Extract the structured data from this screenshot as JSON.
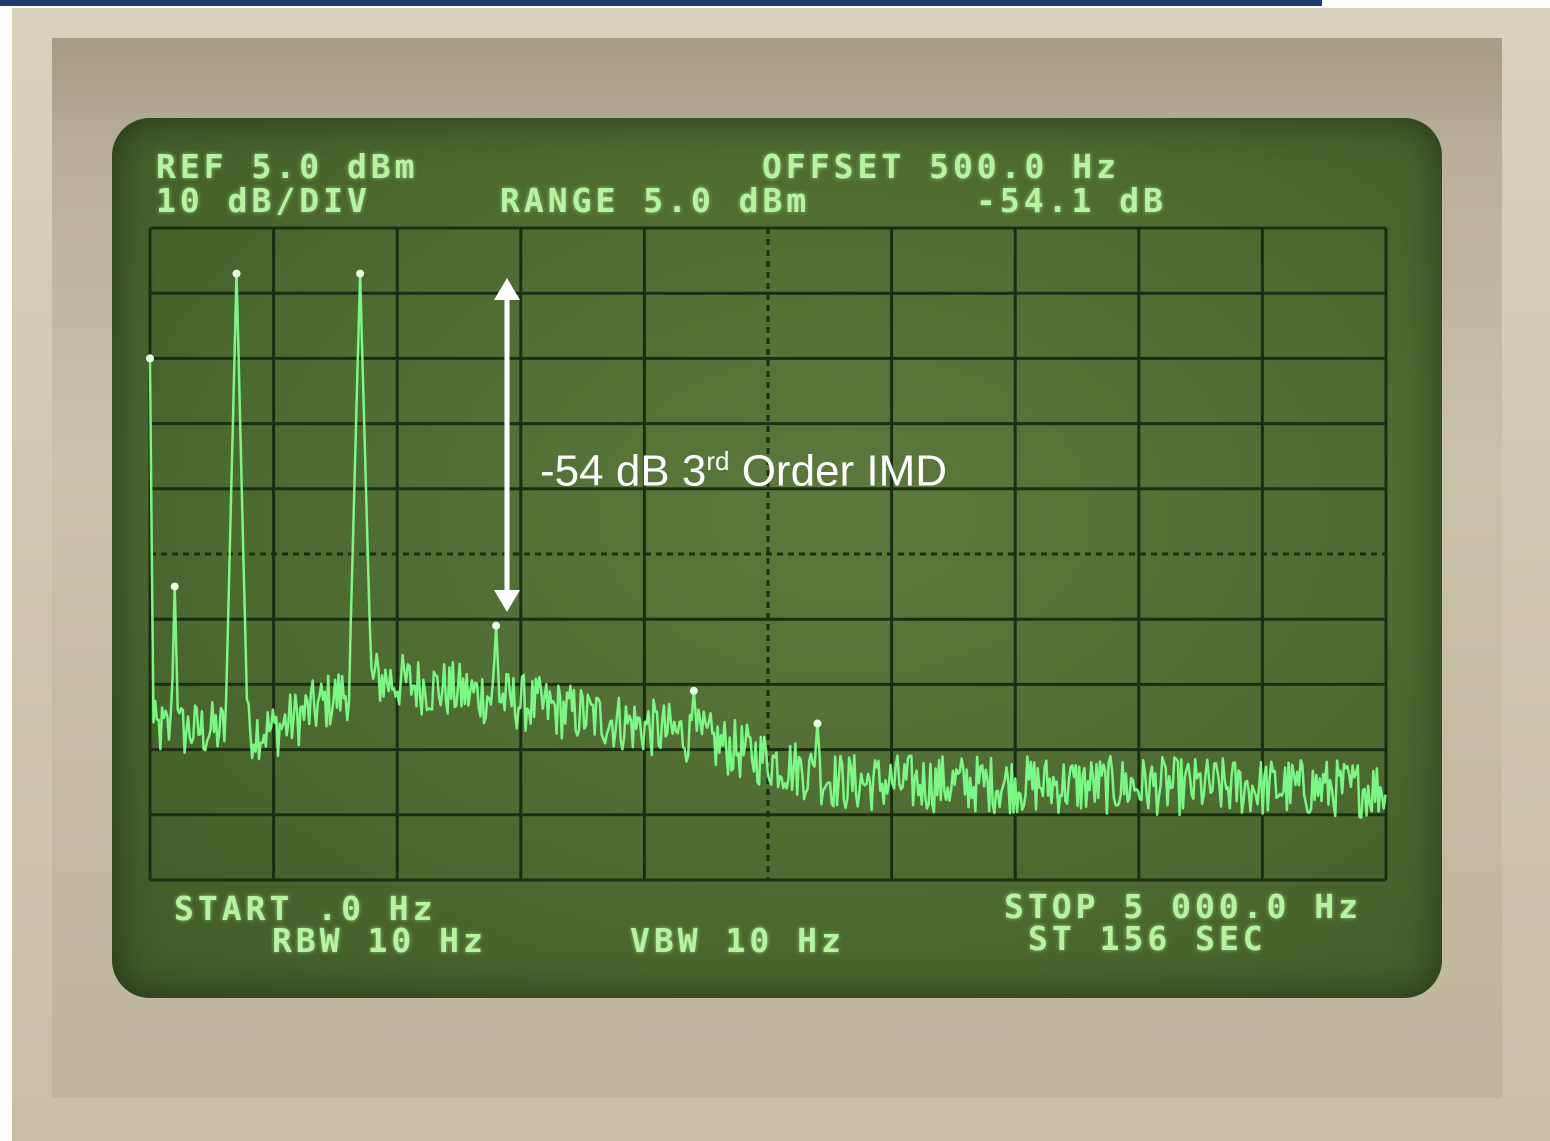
{
  "chart_data": {
    "type": "line",
    "title": "",
    "header": {
      "ref": "REF 5.0 dBm",
      "scale": "10 dB/DIV",
      "range": "RANGE 5.0 dBm",
      "offset": "OFFSET 500.0 Hz",
      "marker_delta": "-54.1 dB"
    },
    "footer": {
      "start": "START .0 Hz",
      "rbw": "RBW 10 Hz",
      "vbw": "VBW 10 Hz",
      "stop": "STOP 5 000.0 Hz",
      "sweep_time": "ST 156 SEC"
    },
    "annotation": {
      "prefix": "-54 dB 3",
      "superscript": "rd",
      "suffix": " Order IMD"
    },
    "xlabel": "",
    "ylabel": "",
    "xlim": [
      0,
      5000
    ],
    "ylim": [
      -95,
      5
    ],
    "grid": true,
    "x_divisions": 10,
    "y_divisions": 10,
    "trace_color": "#7dff8a",
    "peaks": [
      {
        "x": 0,
        "y": -15
      },
      {
        "x": 100,
        "y": -50
      },
      {
        "x": 350,
        "y": -2
      },
      {
        "x": 850,
        "y": -2
      },
      {
        "x": 1400,
        "y": -56
      },
      {
        "x": 2200,
        "y": -66
      },
      {
        "x": 2700,
        "y": -71
      }
    ],
    "noise_floor": [
      {
        "x": 0,
        "y": -72
      },
      {
        "x": 500,
        "y": -72
      },
      {
        "x": 900,
        "y": -64
      },
      {
        "x": 1400,
        "y": -67
      },
      {
        "x": 2200,
        "y": -73
      },
      {
        "x": 2800,
        "y": -80
      },
      {
        "x": 5000,
        "y": -81
      }
    ]
  }
}
